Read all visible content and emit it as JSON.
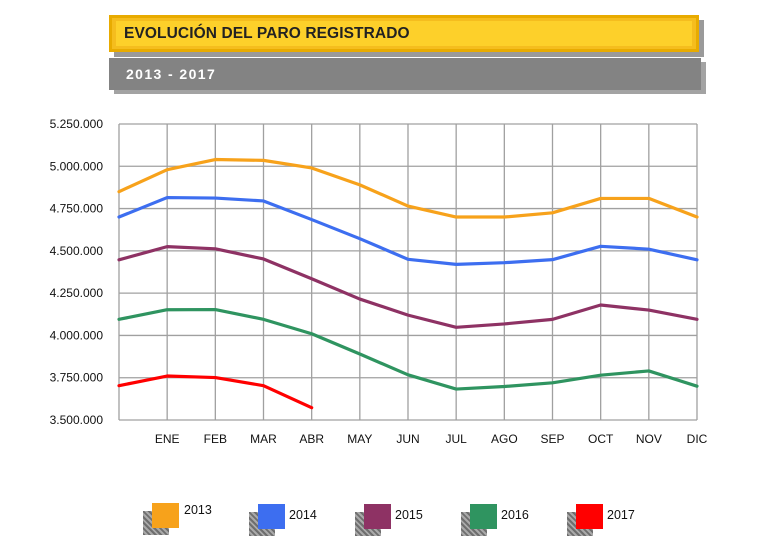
{
  "header": {
    "title": "EVOLUCIÓN DEL PARO REGISTRADO",
    "subtitle": "2013 - 2017"
  },
  "colors": {
    "title_bg": "#fdd02a",
    "subtitle_bg": "#838383",
    "grid": "#a0a0a0"
  },
  "chart_data": {
    "type": "line",
    "categories": [
      "",
      "ENE",
      "FEB",
      "MAR",
      "ABR",
      "MAY",
      "JUN",
      "JUL",
      "AGO",
      "SEP",
      "OCT",
      "NOV",
      "DIC"
    ],
    "ylim": [
      3500000,
      5250000
    ],
    "yticks": [
      3500000,
      3750000,
      4000000,
      4250000,
      4500000,
      4750000,
      5000000,
      5250000
    ],
    "ytick_labels": [
      "3.500.000",
      "3.750.000",
      "4.000.000",
      "4.250.000",
      "4.500.000",
      "4.750.000",
      "5.000.000",
      "5.250.000"
    ],
    "grid": true,
    "legend_position": "bottom",
    "series": [
      {
        "name": "2013",
        "color": "#f7a21b",
        "values": [
          4850000,
          4980000,
          5040000,
          5035000,
          4990000,
          4890000,
          4765000,
          4700000,
          4700000,
          4725000,
          4810000,
          4810000,
          4700000
        ]
      },
      {
        "name": "2014",
        "color": "#3d6ef0",
        "values": [
          4700000,
          4815000,
          4812000,
          4795000,
          4685000,
          4572000,
          4450000,
          4420000,
          4430000,
          4448000,
          4527000,
          4510000,
          4447000
        ]
      },
      {
        "name": "2015",
        "color": "#8e3264",
        "values": [
          4447000,
          4525000,
          4512000,
          4452000,
          4335000,
          4215000,
          4120000,
          4048000,
          4068000,
          4095000,
          4180000,
          4150000,
          4095000
        ]
      },
      {
        "name": "2016",
        "color": "#2f9460",
        "values": [
          4095000,
          4152000,
          4153000,
          4095000,
          4010000,
          3890000,
          3767000,
          3683000,
          3698000,
          3720000,
          3765000,
          3790000,
          3700000
        ]
      },
      {
        "name": "2017",
        "color": "#ff0000",
        "values": [
          3703000,
          3760000,
          3751000,
          3703000,
          3573000,
          null,
          null,
          null,
          null,
          null,
          null,
          null,
          null
        ]
      }
    ]
  }
}
